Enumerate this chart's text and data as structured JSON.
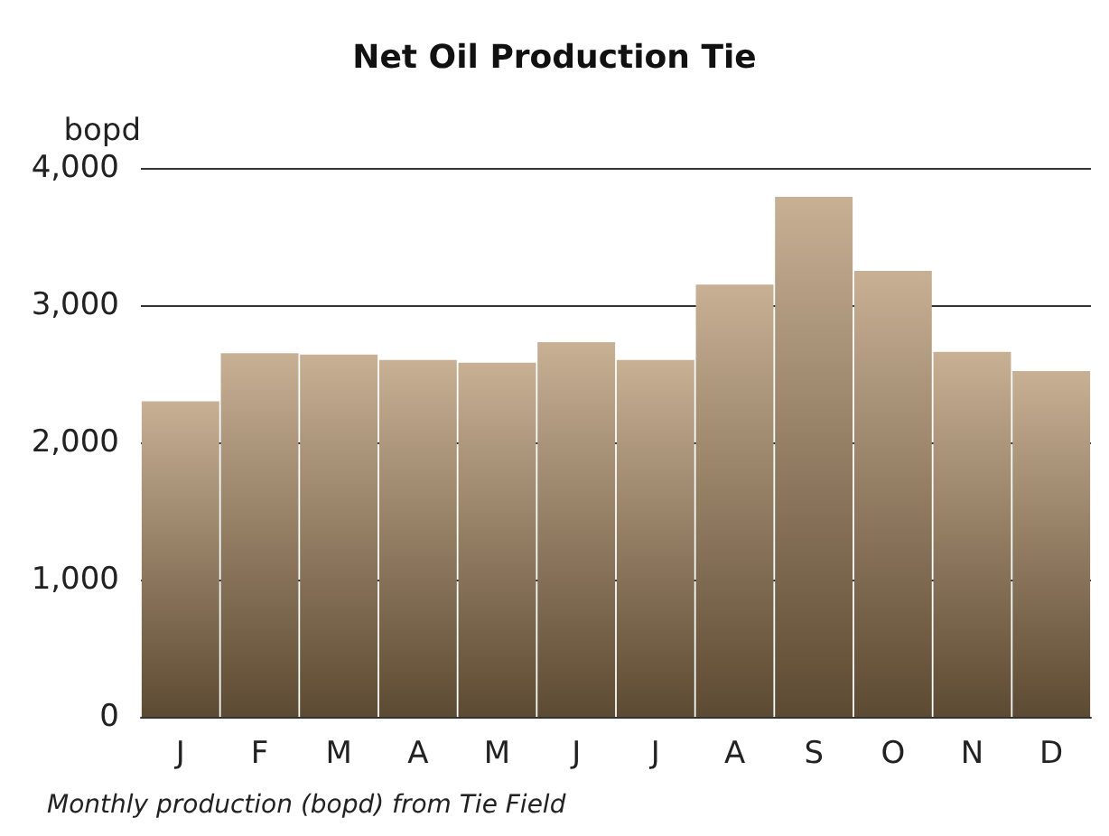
{
  "chart_data": {
    "type": "bar",
    "title": "Net Oil Production Tie",
    "ylabel": "bopd",
    "categories": [
      "J",
      "F",
      "M",
      "A",
      "M",
      "J",
      "J",
      "A",
      "S",
      "O",
      "N",
      "D"
    ],
    "values": [
      2300,
      2650,
      2640,
      2600,
      2580,
      2730,
      2600,
      3150,
      3790,
      3250,
      2660,
      2520
    ],
    "color": "#a9865a",
    "ylim": [
      0,
      4000
    ],
    "yticks": [
      {
        "value": 0,
        "label": "0"
      },
      {
        "value": 1000,
        "label": "1,000"
      },
      {
        "value": 2000,
        "label": "2,000"
      },
      {
        "value": 3000,
        "label": "3,000"
      },
      {
        "value": 4000,
        "label": "4,000"
      }
    ],
    "grid": "y",
    "annotations": [
      "Monthly production (bopd) from Tie Field"
    ]
  }
}
